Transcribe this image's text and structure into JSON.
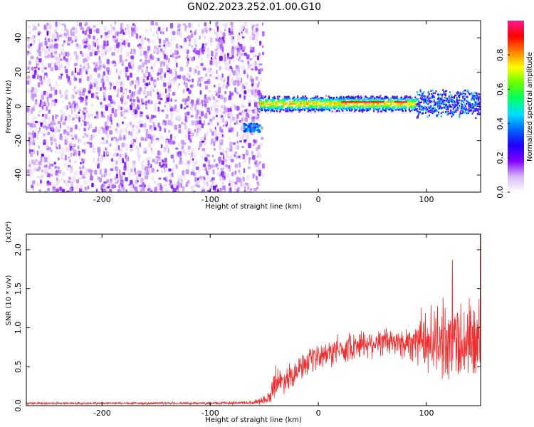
{
  "title": "GN02.2023.252.01.00.G10",
  "chart_data": [
    {
      "type": "heatmap",
      "xlabel": "Height of straight line (km)",
      "ylabel": "Frequency (Hz)",
      "xlim": [
        -270,
        150
      ],
      "ylim": [
        -50,
        50
      ],
      "x_ticks": [
        -200,
        -100,
        0,
        100
      ],
      "y_ticks": [
        -40,
        -20,
        0,
        20,
        40
      ],
      "colorbar": {
        "label": "Normalized spectral amplitude",
        "range": [
          0.0,
          1.0
        ],
        "ticks": [
          "0.0",
          "0.2",
          "0.4",
          "0.6",
          "0.8"
        ],
        "tick_values": [
          0.0,
          0.2,
          0.4,
          0.6,
          0.8
        ],
        "colormap": [
          "#ffffff",
          "#d5b8f5",
          "#8000ff",
          "#2000ff",
          "#0066ff",
          "#00e0ff",
          "#00ff66",
          "#66ff00",
          "#ffff00",
          "#ff8000",
          "#ff0000",
          "#ff1a8c"
        ]
      },
      "regions": [
        {
          "name": "noise",
          "x_range": [
            -270,
            -60
          ],
          "y_range": [
            -50,
            50
          ],
          "amplitude": 0.05
        },
        {
          "name": "onset",
          "x_range": [
            -70,
            -55
          ],
          "frequency": -12,
          "amplitude": 0.35
        },
        {
          "name": "signal",
          "x_range": [
            -55,
            150
          ],
          "frequency": 2,
          "amplitude": 0.9
        }
      ]
    },
    {
      "type": "line",
      "xlabel": "Height of straight line (km)",
      "ylabel": "SNR (10 * v/v)",
      "y_multiplier": "(x10⁴)",
      "xlim": [
        -270,
        150
      ],
      "ylim": [
        0,
        2.2
      ],
      "x_ticks": [
        -200,
        -100,
        0,
        100
      ],
      "y_ticks": [
        "0.0",
        "0.5",
        "1.0",
        "1.5",
        "2.0"
      ],
      "y_tick_values": [
        0,
        0.5,
        1.0,
        1.5,
        2.0
      ],
      "color": "#f03030",
      "series": [
        {
          "x": [
            -270,
            -200,
            -100,
            -60,
            -45,
            -40,
            -35,
            -20,
            0,
            20,
            40,
            60,
            80,
            90,
            100,
            110,
            120,
            130,
            140,
            150
          ],
          "values": [
            0.03,
            0.03,
            0.03,
            0.04,
            0.1,
            0.35,
            0.3,
            0.45,
            0.62,
            0.72,
            0.8,
            0.82,
            0.8,
            0.85,
            0.82,
            0.85,
            0.8,
            0.85,
            0.8,
            0.82
          ],
          "noise_amplitude": [
            0.02,
            0.02,
            0.02,
            0.03,
            0.1,
            0.25,
            0.2,
            0.2,
            0.2,
            0.22,
            0.22,
            0.22,
            0.25,
            0.35,
            0.5,
            0.55,
            0.6,
            0.65,
            0.7,
            0.7
          ]
        }
      ]
    }
  ]
}
